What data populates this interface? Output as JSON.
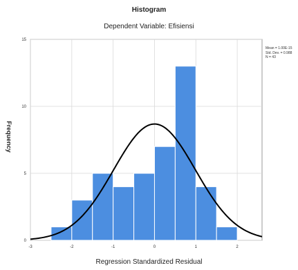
{
  "chart_data": {
    "type": "bar",
    "title": "Histogram",
    "subtitle": "Dependent Variable: Efisiensi",
    "xlabel": "Regression Standardized Residual",
    "ylabel": "Frequency",
    "xlim": [
      -3.0,
      2.6
    ],
    "ylim": [
      0,
      15
    ],
    "x_ticks": [
      -3,
      -2,
      -1,
      0,
      1,
      2
    ],
    "y_ticks": [
      0,
      5,
      10,
      15
    ],
    "bin_width": 0.5,
    "bins": [
      {
        "start": -2.5,
        "count": 1
      },
      {
        "start": -2.0,
        "count": 3
      },
      {
        "start": -1.5,
        "count": 5
      },
      {
        "start": -1.0,
        "count": 4
      },
      {
        "start": -0.5,
        "count": 5
      },
      {
        "start": 0.0,
        "count": 7
      },
      {
        "start": 0.5,
        "count": 13
      },
      {
        "start": 1.0,
        "count": 4
      },
      {
        "start": 1.5,
        "count": 1
      }
    ],
    "normal_curve": {
      "mean": 0.0,
      "std_dev": 0.988,
      "n": 43
    },
    "stats_lines": [
      "Mean = 1.00E-15",
      "Std. Dev. = 0.988",
      "N = 43"
    ],
    "grid": true,
    "legend": "right",
    "colors": {
      "bar": "#4c8ee0",
      "bar_edge": "#ffffff",
      "curve": "#000000",
      "grid": "#d9d9d9"
    }
  }
}
